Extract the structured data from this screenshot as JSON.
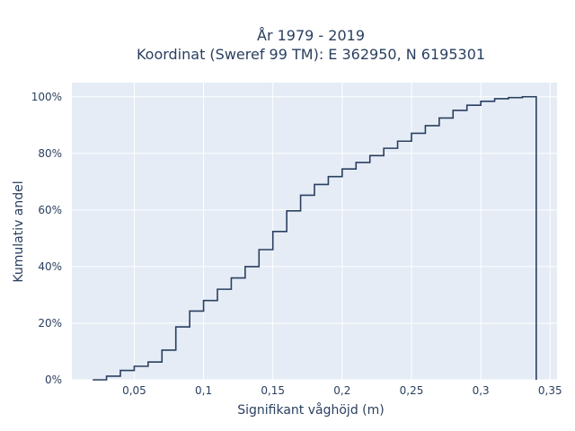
{
  "chart_data": {
    "type": "line",
    "step": true,
    "title_line1": "År 1979 - 2019",
    "title_line2": "Koordinat (Sweref 99 TM): E 362950, N 6195301",
    "xlabel": "Signifikant våghöjd (m)",
    "ylabel": "Kumulativ andel",
    "xlim": [
      0.005,
      0.355
    ],
    "ylim": [
      0,
      1.05
    ],
    "x_ticks": [
      0.05,
      0.1,
      0.15,
      0.2,
      0.25,
      0.3,
      0.35
    ],
    "x_tick_labels": [
      "0,05",
      "0,1",
      "0,15",
      "0,2",
      "0,25",
      "0,3",
      "0,35"
    ],
    "y_ticks": [
      0,
      0.2,
      0.4,
      0.6,
      0.8,
      1.0
    ],
    "y_tick_labels": [
      "0%",
      "20%",
      "40%",
      "60%",
      "80%",
      "100%"
    ],
    "grid": true,
    "colors": {
      "plot_bg": "#e5ecf6",
      "line": "#2a3f5f",
      "grid": "#ffffff"
    },
    "x": [
      0.02,
      0.03,
      0.04,
      0.05,
      0.06,
      0.07,
      0.08,
      0.09,
      0.1,
      0.11,
      0.12,
      0.13,
      0.14,
      0.15,
      0.16,
      0.17,
      0.18,
      0.19,
      0.2,
      0.21,
      0.22,
      0.23,
      0.24,
      0.25,
      0.26,
      0.27,
      0.28,
      0.29,
      0.3,
      0.31,
      0.32,
      0.33,
      0.34
    ],
    "y": [
      0.0,
      0.013,
      0.033,
      0.048,
      0.063,
      0.105,
      0.187,
      0.243,
      0.28,
      0.32,
      0.36,
      0.4,
      0.46,
      0.524,
      0.597,
      0.652,
      0.69,
      0.718,
      0.745,
      0.768,
      0.792,
      0.818,
      0.843,
      0.871,
      0.898,
      0.925,
      0.952,
      0.97,
      0.984,
      0.993,
      0.997,
      1.0,
      1.0
    ]
  }
}
